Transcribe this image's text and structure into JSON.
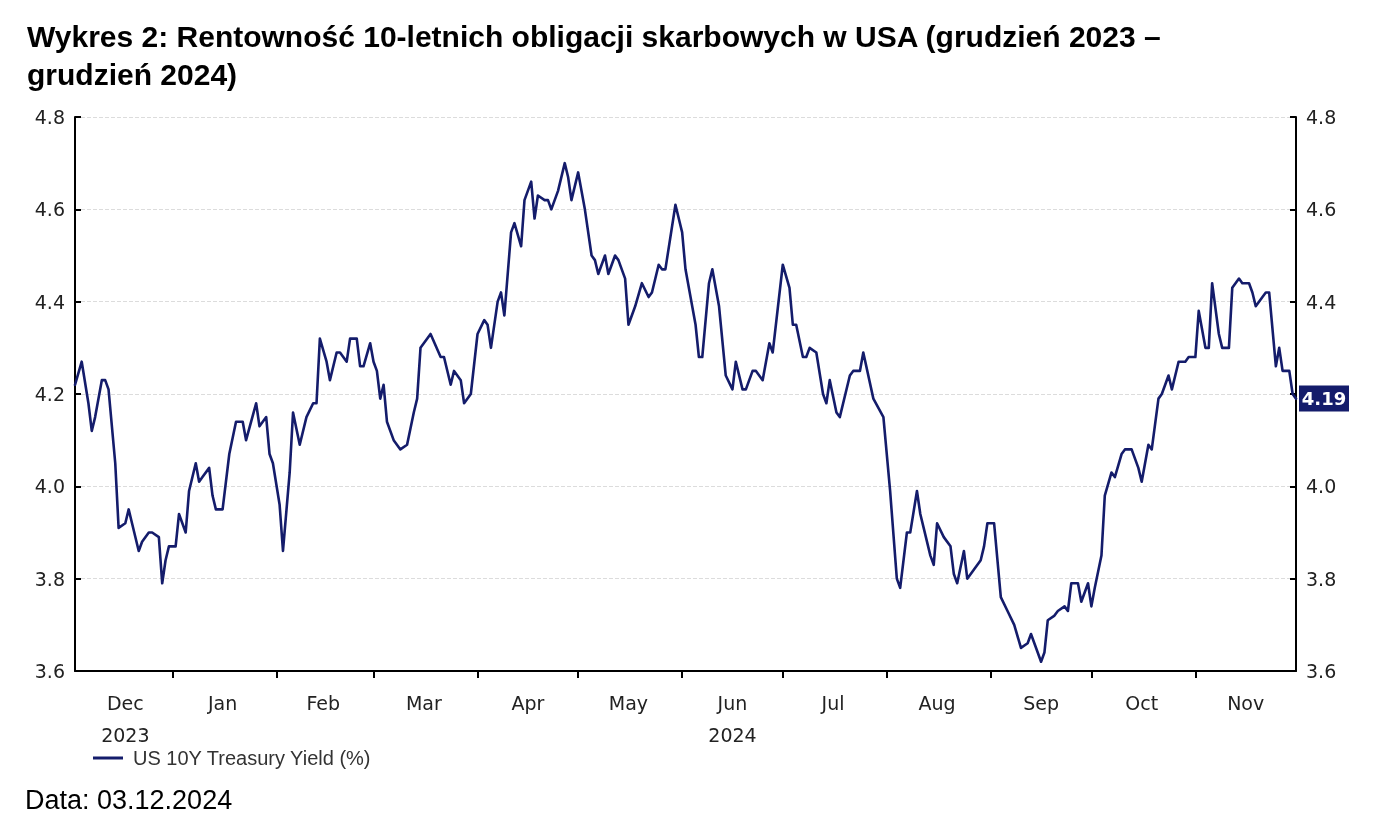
{
  "chart_data": {
    "type": "line",
    "title": "Wykres 2: Rentowność 10-letnich obligacji skarbowych w USA (grudzień 2023 – grudzień 2024)",
    "x": [
      "2023-12-03",
      "2023-12-05",
      "2023-12-07",
      "2023-12-08",
      "2023-12-09",
      "2023-12-11",
      "2023-12-12",
      "2023-12-13",
      "2023-12-15",
      "2023-12-16",
      "2023-12-18",
      "2023-12-19",
      "2023-12-20",
      "2023-12-22",
      "2023-12-23",
      "2023-12-25",
      "2023-12-26",
      "2023-12-28",
      "2023-12-29",
      "2023-12-30",
      "2023-12-31",
      "2024-01-02",
      "2024-01-03",
      "2024-01-05",
      "2024-01-06",
      "2024-01-08",
      "2024-01-09",
      "2024-01-10",
      "2024-01-12",
      "2024-01-13",
      "2024-01-14",
      "2024-01-16",
      "2024-01-18",
      "2024-01-20",
      "2024-01-22",
      "2024-01-23",
      "2024-01-26",
      "2024-01-27",
      "2024-01-29",
      "2024-01-30",
      "2024-01-31",
      "2024-02-02",
      "2024-02-03",
      "2024-02-05",
      "2024-02-06",
      "2024-02-08",
      "2024-02-10",
      "2024-02-12",
      "2024-02-13",
      "2024-02-14",
      "2024-02-16",
      "2024-02-17",
      "2024-02-19",
      "2024-02-20",
      "2024-02-22",
      "2024-02-23",
      "2024-02-25",
      "2024-02-26",
      "2024-02-27",
      "2024-02-29",
      "2024-03-01",
      "2024-03-02",
      "2024-03-03",
      "2024-03-04",
      "2024-03-05",
      "2024-03-07",
      "2024-03-09",
      "2024-03-11",
      "2024-03-13",
      "2024-03-14",
      "2024-03-15",
      "2024-03-18",
      "2024-03-21",
      "2024-03-22",
      "2024-03-24",
      "2024-03-25",
      "2024-03-27",
      "2024-03-28",
      "2024-03-30",
      "2024-04-01",
      "2024-04-03",
      "2024-04-04",
      "2024-04-05",
      "2024-04-07",
      "2024-04-08",
      "2024-04-09",
      "2024-04-11",
      "2024-04-12",
      "2024-04-14",
      "2024-04-15",
      "2024-04-17",
      "2024-04-18",
      "2024-04-19",
      "2024-04-21",
      "2024-04-22",
      "2024-04-23",
      "2024-04-25",
      "2024-04-27",
      "2024-04-28",
      "2024-04-29",
      "2024-05-01",
      "2024-05-03",
      "2024-05-05",
      "2024-05-06",
      "2024-05-07",
      "2024-05-09",
      "2024-05-10",
      "2024-05-12",
      "2024-05-13",
      "2024-05-15",
      "2024-05-16",
      "2024-05-18",
      "2024-05-20",
      "2024-05-22",
      "2024-05-23",
      "2024-05-25",
      "2024-05-26",
      "2024-05-27",
      "2024-05-30",
      "2024-06-01",
      "2024-06-02",
      "2024-06-05",
      "2024-06-06",
      "2024-06-07",
      "2024-06-09",
      "2024-06-10",
      "2024-06-12",
      "2024-06-14",
      "2024-06-16",
      "2024-06-17",
      "2024-06-19",
      "2024-06-20",
      "2024-06-22",
      "2024-06-23",
      "2024-06-25",
      "2024-06-27",
      "2024-06-28",
      "2024-07-01",
      "2024-07-03",
      "2024-07-04",
      "2024-07-05",
      "2024-07-07",
      "2024-07-08",
      "2024-07-09",
      "2024-07-11",
      "2024-07-13",
      "2024-07-14",
      "2024-07-15",
      "2024-07-17",
      "2024-07-18",
      "2024-07-21",
      "2024-07-22",
      "2024-07-24",
      "2024-07-25",
      "2024-07-28",
      "2024-07-31",
      "2024-08-02",
      "2024-08-04",
      "2024-08-05",
      "2024-08-07",
      "2024-08-08",
      "2024-08-10",
      "2024-08-11",
      "2024-08-12",
      "2024-08-14",
      "2024-08-15",
      "2024-08-16",
      "2024-08-18",
      "2024-08-20",
      "2024-08-21",
      "2024-08-22",
      "2024-08-24",
      "2024-08-25",
      "2024-08-27",
      "2024-08-29",
      "2024-08-30",
      "2024-08-31",
      "2024-09-02",
      "2024-09-04",
      "2024-09-06",
      "2024-09-08",
      "2024-09-10",
      "2024-09-12",
      "2024-09-13",
      "2024-09-14",
      "2024-09-16",
      "2024-09-17",
      "2024-09-18",
      "2024-09-20",
      "2024-09-21",
      "2024-09-23",
      "2024-09-24",
      "2024-09-25",
      "2024-09-27",
      "2024-09-28",
      "2024-09-30",
      "2024-10-01",
      "2024-10-02",
      "2024-10-04",
      "2024-10-05",
      "2024-10-07",
      "2024-10-08",
      "2024-10-10",
      "2024-10-11",
      "2024-10-13",
      "2024-10-15",
      "2024-10-16",
      "2024-10-18",
      "2024-10-19",
      "2024-10-21",
      "2024-10-22",
      "2024-10-24",
      "2024-10-25",
      "2024-10-27",
      "2024-10-29",
      "2024-10-30",
      "2024-11-01",
      "2024-11-02",
      "2024-11-04",
      "2024-11-05",
      "2024-11-06",
      "2024-11-08",
      "2024-11-09",
      "2024-11-11",
      "2024-11-12",
      "2024-11-14",
      "2024-11-15",
      "2024-11-17",
      "2024-11-18",
      "2024-11-19",
      "2024-11-21",
      "2024-11-22",
      "2024-11-23",
      "2024-11-25",
      "2024-11-26",
      "2024-11-27",
      "2024-11-29",
      "2024-11-30",
      "2024-12-01"
    ],
    "series": [
      {
        "name": "US 10Y Treasury Yield (%)",
        "color": "#141c6b",
        "values": [
          4.22,
          4.27,
          4.18,
          4.12,
          4.15,
          4.23,
          4.23,
          4.21,
          4.05,
          3.91,
          3.92,
          3.95,
          3.92,
          3.86,
          3.88,
          3.9,
          3.9,
          3.89,
          3.79,
          3.84,
          3.87,
          3.87,
          3.94,
          3.9,
          3.99,
          4.05,
          4.01,
          4.02,
          4.04,
          3.98,
          3.95,
          3.95,
          4.07,
          4.14,
          4.14,
          4.1,
          4.18,
          4.13,
          4.15,
          4.07,
          4.05,
          3.96,
          3.86,
          4.03,
          4.16,
          4.09,
          4.15,
          4.18,
          4.18,
          4.32,
          4.27,
          4.23,
          4.29,
          4.29,
          4.27,
          4.32,
          4.32,
          4.26,
          4.26,
          4.31,
          4.27,
          4.25,
          4.19,
          4.22,
          4.14,
          4.1,
          4.08,
          4.09,
          4.16,
          4.19,
          4.3,
          4.33,
          4.28,
          4.28,
          4.22,
          4.25,
          4.23,
          4.18,
          4.2,
          4.33,
          4.36,
          4.35,
          4.3,
          4.4,
          4.42,
          4.37,
          4.55,
          4.57,
          4.52,
          4.62,
          4.66,
          4.58,
          4.63,
          4.62,
          4.62,
          4.6,
          4.64,
          4.7,
          4.67,
          4.62,
          4.68,
          4.6,
          4.5,
          4.49,
          4.46,
          4.5,
          4.46,
          4.5,
          4.49,
          4.45,
          4.35,
          4.39,
          4.44,
          4.41,
          4.42,
          4.48,
          4.47,
          4.47,
          4.61,
          4.55,
          4.47,
          4.35,
          4.28,
          4.28,
          4.44,
          4.47,
          4.39,
          4.24,
          4.21,
          4.27,
          4.21,
          4.21,
          4.25,
          4.25,
          4.23,
          4.31,
          4.29,
          4.48,
          4.43,
          4.35,
          4.35,
          4.28,
          4.28,
          4.3,
          4.29,
          4.2,
          4.18,
          4.23,
          4.16,
          4.15,
          4.24,
          4.25,
          4.25,
          4.29,
          4.19,
          4.15,
          3.99,
          3.8,
          3.78,
          3.9,
          3.9,
          3.99,
          3.94,
          3.91,
          3.85,
          3.83,
          3.92,
          3.89,
          3.87,
          3.81,
          3.79,
          3.86,
          3.8,
          3.82,
          3.84,
          3.87,
          3.92,
          3.92,
          3.76,
          3.73,
          3.7,
          3.65,
          3.66,
          3.68,
          3.66,
          3.62,
          3.64,
          3.71,
          3.72,
          3.73,
          3.74,
          3.73,
          3.79,
          3.79,
          3.75,
          3.79,
          3.74,
          3.78,
          3.85,
          3.98,
          4.03,
          4.02,
          4.07,
          4.08,
          4.08,
          4.04,
          4.01,
          4.09,
          4.08,
          4.19,
          4.2,
          4.24,
          4.21,
          4.27,
          4.27,
          4.28,
          4.28,
          4.38,
          4.3,
          4.3,
          4.44,
          4.33,
          4.3,
          4.3,
          4.43,
          4.45,
          4.44,
          4.44,
          4.42,
          4.39,
          4.41,
          4.42,
          4.42,
          4.26,
          4.3,
          4.25,
          4.25,
          4.2,
          4.19
        ]
      }
    ],
    "xlim": [
      "2023-12-03",
      "2024-12-01"
    ],
    "x2lim": [
      "2023-12-03",
      "2024-12-01"
    ],
    "x2ticks": [
      {
        "value": "2023-12-18",
        "label": "2023"
      },
      {
        "value": "2024-06-16",
        "label": "2024"
      }
    ],
    "xticks": [
      {
        "value": "2023-12-18",
        "label": "Dec"
      },
      {
        "value": "2024-01-01",
        "label": null
      },
      {
        "value": "2024-01-16",
        "label": "Jan"
      },
      {
        "value": "2024-02-01",
        "label": null
      },
      {
        "value": "2024-02-15",
        "label": "Feb"
      },
      {
        "value": "2024-03-01",
        "label": null
      },
      {
        "value": "2024-03-16",
        "label": "Mar"
      },
      {
        "value": "2024-04-01",
        "label": null
      },
      {
        "value": "2024-04-16",
        "label": "Apr"
      },
      {
        "value": "2024-05-01",
        "label": null
      },
      {
        "value": "2024-05-16",
        "label": "May"
      },
      {
        "value": "2024-06-01",
        "label": null
      },
      {
        "value": "2024-06-16",
        "label": "Jun"
      },
      {
        "value": "2024-07-01",
        "label": null
      },
      {
        "value": "2024-07-16",
        "label": "Jul"
      },
      {
        "value": "2024-08-01",
        "label": null
      },
      {
        "value": "2024-08-16",
        "label": "Aug"
      },
      {
        "value": "2024-09-01",
        "label": null
      },
      {
        "value": "2024-09-16",
        "label": "Sep"
      },
      {
        "value": "2024-10-01",
        "label": null
      },
      {
        "value": "2024-10-16",
        "label": "Oct"
      },
      {
        "value": "2024-11-01",
        "label": null
      },
      {
        "value": "2024-11-16",
        "label": "Nov"
      }
    ],
    "ylim": [
      3.6,
      4.8
    ],
    "yticks": [
      3.6,
      3.8,
      {
        "value": 4.0,
        "label": "4.0"
      },
      4.2,
      4.4,
      4.6,
      4.8
    ],
    "y2lim": [
      3.6,
      4.8
    ],
    "y2ticks": [
      3.6,
      3.8,
      {
        "value": 4.0,
        "label": "4.0"
      },
      {
        "value": 4.2,
        "label": null
      },
      4.4,
      4.6,
      4.8
    ],
    "grid": "y",
    "legend": "bottom left",
    "marker": "none",
    "line_style": "solid",
    "annotations": [
      {
        "text": "4.19",
        "x": "2024-12-01",
        "y": 4.19
      },
      "Data: 03.12.2024"
    ]
  }
}
